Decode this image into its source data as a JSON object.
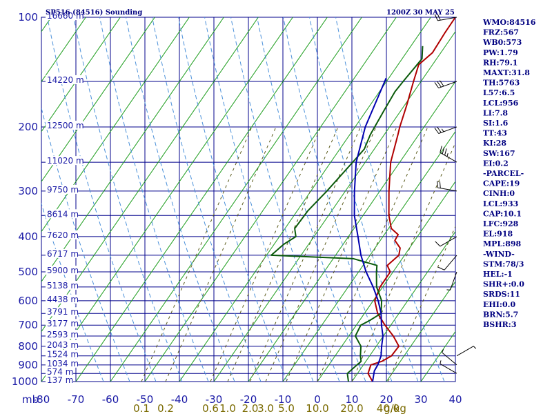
{
  "header": {
    "station": "SP516 (84516) Sounding",
    "time": "1200Z 30 MAY 25"
  },
  "colors": {
    "grid": "#00008b",
    "dry_adiabat": "#1a9c1a",
    "moist_adiabat": "#4a90d9",
    "mixing_ratio": "#5a5a1a",
    "temperature": "#b00000",
    "dewpoint": "#0a5a0a",
    "parcel": "#0000b0",
    "wind": "#000000"
  },
  "chart_data": {
    "type": "line",
    "title": "",
    "xlabel": "",
    "ylabel": "",
    "axis_label": "mb",
    "p_range": [
      100,
      1000
    ],
    "t_range": [
      -80,
      40
    ],
    "pressure_ticks": [
      100,
      200,
      300,
      400,
      500,
      600,
      700,
      800,
      900,
      1000
    ],
    "temp_ticks": [
      -80,
      -70,
      -60,
      -50,
      -40,
      -30,
      -20,
      -10,
      0,
      10,
      20,
      30,
      40
    ],
    "mixing_ratio_labels": [
      {
        "w": "0.1",
        "t": -51
      },
      {
        "w": "0.2",
        "t": -44
      },
      {
        "w": "0.6",
        "t": -31
      },
      {
        "w": "1.0",
        "t": -26
      },
      {
        "w": "2.0",
        "t": -19.5
      },
      {
        "w": "3.0",
        "t": -15
      },
      {
        "w": "5.0",
        "t": -9
      },
      {
        "w": "10.0",
        "t": 0
      },
      {
        "w": "20.0",
        "t": 10
      },
      {
        "w": "40.0",
        "t": 20.5
      },
      {
        "w": "g/kg",
        "t": 22.5
      }
    ],
    "height_labels": [
      {
        "p": 100,
        "label": "16660 m"
      },
      {
        "p": 150,
        "label": "14220 m"
      },
      {
        "p": 200,
        "label": "12500 m"
      },
      {
        "p": 250,
        "label": "11020 m"
      },
      {
        "p": 300,
        "label": "9750 m"
      },
      {
        "p": 350,
        "label": "8614 m"
      },
      {
        "p": 400,
        "label": "7620 m"
      },
      {
        "p": 450,
        "label": "6717 m"
      },
      {
        "p": 500,
        "label": "5900 m"
      },
      {
        "p": 550,
        "label": "5138 m"
      },
      {
        "p": 600,
        "label": "4438 m"
      },
      {
        "p": 650,
        "label": "3791 m"
      },
      {
        "p": 700,
        "label": "3177 m"
      },
      {
        "p": 750,
        "label": "2593 m"
      },
      {
        "p": 800,
        "label": "2043 m"
      },
      {
        "p": 850,
        "label": "1524 m"
      },
      {
        "p": 900,
        "label": "1034 m"
      },
      {
        "p": 950,
        "label": "574 m"
      },
      {
        "p": 1000,
        "label": "137 m"
      }
    ],
    "series": [
      {
        "key": "temperature",
        "points": [
          [
            100,
            -80
          ],
          [
            110,
            -78
          ],
          [
            125,
            -75
          ],
          [
            135,
            -75
          ],
          [
            150,
            -71
          ],
          [
            175,
            -65
          ],
          [
            200,
            -60
          ],
          [
            210,
            -58
          ],
          [
            250,
            -51
          ],
          [
            300,
            -42
          ],
          [
            350,
            -34
          ],
          [
            380,
            -29
          ],
          [
            395,
            -25
          ],
          [
            410,
            -24
          ],
          [
            430,
            -20
          ],
          [
            450,
            -18
          ],
          [
            480,
            -18
          ],
          [
            500,
            -15
          ],
          [
            550,
            -13
          ],
          [
            600,
            -10
          ],
          [
            650,
            -5
          ],
          [
            700,
            1
          ],
          [
            750,
            7
          ],
          [
            800,
            12
          ],
          [
            850,
            13
          ],
          [
            880,
            12
          ],
          [
            900,
            10
          ],
          [
            950,
            12
          ],
          [
            1000,
            16
          ]
        ]
      },
      {
        "key": "dewpoint",
        "points": [
          [
            120,
            -80
          ],
          [
            130,
            -76
          ],
          [
            150,
            -74
          ],
          [
            160,
            -73
          ],
          [
            180,
            -70
          ],
          [
            210,
            -66
          ],
          [
            230,
            -63
          ],
          [
            250,
            -62
          ],
          [
            300,
            -60
          ],
          [
            340,
            -59
          ],
          [
            380,
            -57
          ],
          [
            400,
            -54
          ],
          [
            420,
            -55
          ],
          [
            450,
            -55
          ],
          [
            460,
            -30
          ],
          [
            480,
            -21
          ],
          [
            500,
            -19
          ],
          [
            550,
            -14
          ],
          [
            600,
            -8
          ],
          [
            650,
            -4
          ],
          [
            680,
            -5
          ],
          [
            700,
            -6
          ],
          [
            750,
            -4
          ],
          [
            800,
            1
          ],
          [
            850,
            4
          ],
          [
            880,
            6
          ],
          [
            900,
            6
          ],
          [
            950,
            6
          ],
          [
            1000,
            9
          ]
        ]
      },
      {
        "key": "parcel",
        "points": [
          [
            147,
            -80
          ],
          [
            200,
            -70
          ],
          [
            250,
            -61
          ],
          [
            300,
            -52
          ],
          [
            350,
            -44
          ],
          [
            400,
            -36
          ],
          [
            450,
            -29
          ],
          [
            500,
            -22
          ],
          [
            550,
            -15
          ],
          [
            600,
            -9
          ],
          [
            650,
            -4
          ],
          [
            700,
            0
          ],
          [
            750,
            4
          ],
          [
            800,
            7
          ],
          [
            850,
            10
          ],
          [
            900,
            12
          ],
          [
            935,
            13
          ],
          [
            1000,
            16
          ]
        ]
      }
    ],
    "wind_barbs": [
      {
        "p": 100,
        "dir": 260,
        "kt": 20
      },
      {
        "p": 150,
        "dir": 250,
        "kt": 30
      },
      {
        "p": 200,
        "dir": 250,
        "kt": 25
      },
      {
        "p": 250,
        "dir": 300,
        "kt": 35
      },
      {
        "p": 300,
        "dir": 280,
        "kt": 20
      },
      {
        "p": 400,
        "dir": 240,
        "kt": 10
      },
      {
        "p": 450,
        "dir": 220,
        "kt": 10
      },
      {
        "p": 500,
        "dir": 200,
        "kt": 5
      },
      {
        "p": 850,
        "dir": 60,
        "kt": 5
      },
      {
        "p": 900,
        "dir": 310,
        "kt": 5
      },
      {
        "p": 950,
        "dir": 300,
        "kt": 5
      }
    ]
  },
  "indices": [
    "WMO:84516",
    "FRZ:567",
    "WB0:573",
    "PW:1.79",
    "RH:79.1",
    "MAXT:31.8",
    "TH:5763",
    "L57:6.5",
    "LCL:956",
    "LI:7.8",
    "SI:1.6",
    "TT:43",
    "KI:28",
    "SW:167",
    "EI:0.2",
    "-PARCEL-",
    "CAPE:19",
    "CINH:0",
    "LCL:933",
    "CAP:10.1",
    "LFC:928",
    "EL:918",
    "MPL:898",
    "-WIND-",
    "STM:78/3",
    "HEL:-1",
    "SHR+:0.0",
    "SRDS:11",
    "EHI:0.0",
    "BRN:5.7",
    "BSHR:3"
  ]
}
